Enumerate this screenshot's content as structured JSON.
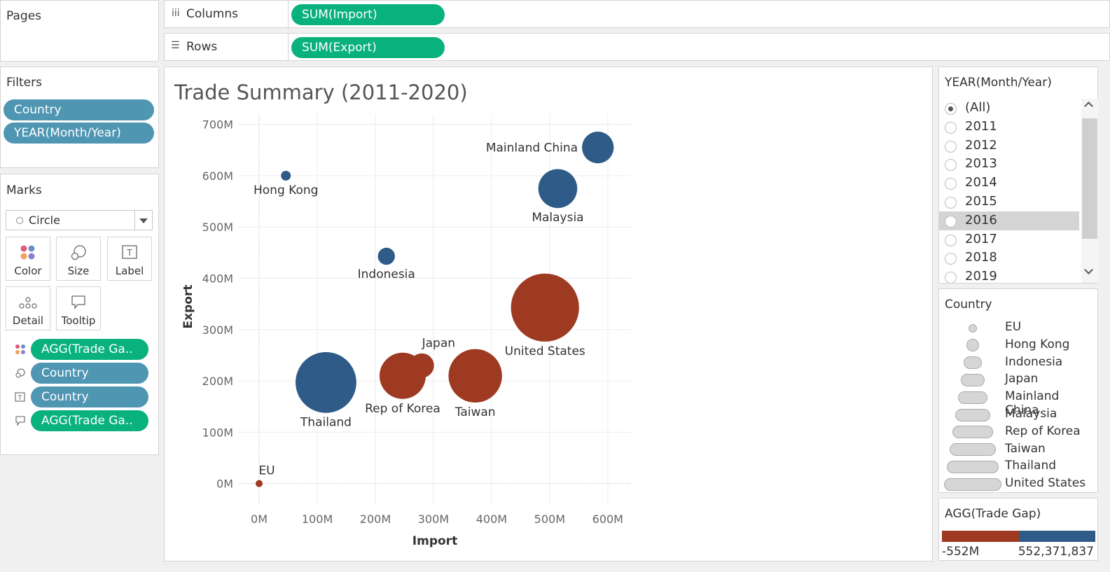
{
  "pages": {
    "title": "Pages"
  },
  "shelves": {
    "columns": {
      "label": "Columns",
      "pill": "SUM(Import)"
    },
    "rows": {
      "label": "Rows",
      "pill": "SUM(Export)"
    }
  },
  "filters": {
    "title": "Filters",
    "items": [
      "Country",
      "YEAR(Month/Year)"
    ]
  },
  "marks": {
    "title": "Marks",
    "type": "Circle",
    "buttons": [
      "Color",
      "Size",
      "Label",
      "Detail",
      "Tooltip"
    ],
    "encodings": [
      {
        "icon": "color-icon",
        "label": "AGG(Trade Ga..",
        "color": "green"
      },
      {
        "icon": "size-icon",
        "label": "Country",
        "color": "blue"
      },
      {
        "icon": "label-icon",
        "label": "Country",
        "color": "blue"
      },
      {
        "icon": "tooltip-icon",
        "label": "AGG(Trade Ga..",
        "color": "green"
      }
    ]
  },
  "year_filter": {
    "title": "YEAR(Month/Year)",
    "options": [
      "(All)",
      "2011",
      "2012",
      "2013",
      "2014",
      "2015",
      "2016",
      "2017",
      "2018",
      "2019"
    ],
    "selected": "(All)",
    "highlighted": "2016"
  },
  "size_legend": {
    "title": "Country",
    "items": [
      "EU",
      "Hong Kong",
      "Indonesia",
      "Japan",
      "Mainland China",
      "Malaysia",
      "Rep of Korea",
      "Taiwan",
      "Thailand",
      "United States"
    ]
  },
  "color_legend": {
    "title": "AGG(Trade Gap)",
    "min_label": "-552M",
    "max_label": "552,371,837",
    "neg_color": "#9e3a22",
    "pos_color": "#2e5b88"
  },
  "chart_data": {
    "type": "scatter",
    "title": "Trade Summary (2011-2020)",
    "xlabel": "Import",
    "ylabel": "Export",
    "xlim": [
      -35,
      640
    ],
    "ylim": [
      -40,
      720
    ],
    "xticks": [
      0,
      100,
      200,
      300,
      400,
      500,
      600
    ],
    "xtick_labels": [
      "0M",
      "100M",
      "200M",
      "300M",
      "400M",
      "500M",
      "600M"
    ],
    "yticks": [
      0,
      100,
      200,
      300,
      400,
      500,
      600,
      700
    ],
    "ytick_labels": [
      "0M",
      "100M",
      "200M",
      "300M",
      "400M",
      "500M",
      "600M",
      "700M"
    ],
    "grid": true,
    "points": [
      {
        "label": "EU",
        "x": 0,
        "y": 0,
        "size_rank": 1,
        "color": "#9e3a22",
        "label_pos": "above"
      },
      {
        "label": "Hong Kong",
        "x": 46,
        "y": 600,
        "size_rank": 2,
        "color": "#2e5b88",
        "label_pos": "below"
      },
      {
        "label": "Indonesia",
        "x": 219,
        "y": 443,
        "size_rank": 3,
        "color": "#2e5b88",
        "label_pos": "below"
      },
      {
        "label": "Japan",
        "x": 280,
        "y": 230,
        "size_rank": 4,
        "color": "#9e3a22",
        "label_pos": "above"
      },
      {
        "label": "Mainland China",
        "x": 583,
        "y": 655,
        "size_rank": 5,
        "color": "#2e5b88",
        "label_pos": "left"
      },
      {
        "label": "Malaysia",
        "x": 514,
        "y": 575,
        "size_rank": 6,
        "color": "#2e5b88",
        "label_pos": "below"
      },
      {
        "label": "Rep of Korea",
        "x": 247,
        "y": 210,
        "size_rank": 7,
        "color": "#9e3a22",
        "label_pos": "below"
      },
      {
        "label": "Taiwan",
        "x": 372,
        "y": 210,
        "size_rank": 8,
        "color": "#9e3a22",
        "label_pos": "below"
      },
      {
        "label": "Thailand",
        "x": 115,
        "y": 197,
        "size_rank": 9,
        "color": "#2e5b88",
        "label_pos": "below"
      },
      {
        "label": "United States",
        "x": 492,
        "y": 343,
        "size_rank": 10,
        "color": "#9e3a22",
        "label_pos": "below"
      }
    ]
  }
}
